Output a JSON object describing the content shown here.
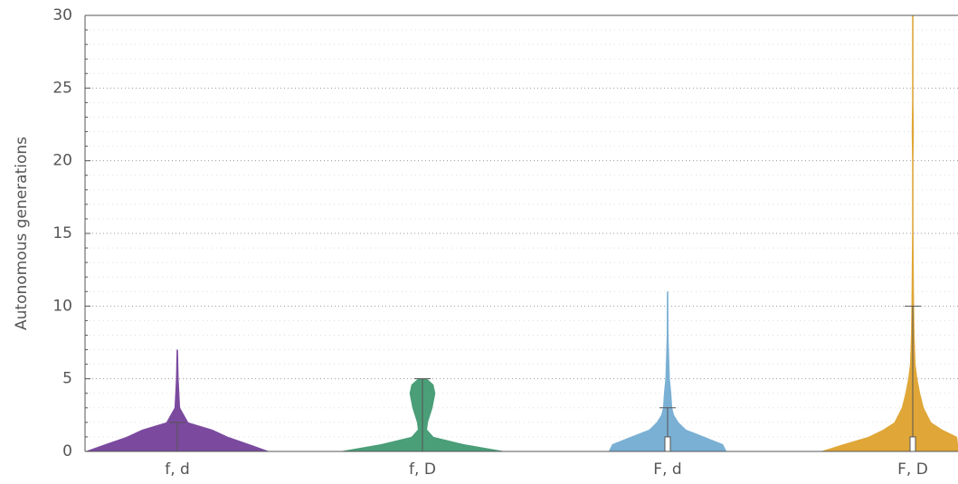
{
  "chart_data": {
    "type": "violin",
    "title": "",
    "xlabel": "",
    "ylabel": "Autonomous generations",
    "ylim": [
      0,
      30
    ],
    "yticks": [
      0,
      5,
      10,
      15,
      20,
      25,
      30
    ],
    "grid": true,
    "categories": [
      "f, d",
      "f, D",
      "F, d",
      "F, D"
    ],
    "series": [
      {
        "category": "f, d",
        "color": "#7b4a9e",
        "profile": [
          [
            0,
            1.0
          ],
          [
            0.5,
            0.78
          ],
          [
            1,
            0.55
          ],
          [
            1.5,
            0.38
          ],
          [
            2,
            0.12
          ],
          [
            3,
            0.03
          ],
          [
            5,
            0.015
          ],
          [
            7,
            0.008
          ]
        ],
        "box": {
          "q1": 0,
          "median": 0,
          "q3": 0,
          "whisker_low": 0,
          "whisker_high": 2
        }
      },
      {
        "category": "f, D",
        "color": "#4a9e78",
        "profile": [
          [
            0,
            0.9
          ],
          [
            0.5,
            0.45
          ],
          [
            1,
            0.12
          ],
          [
            1.5,
            0.05
          ],
          [
            2,
            0.06
          ],
          [
            3,
            0.11
          ],
          [
            4,
            0.14
          ],
          [
            4.6,
            0.12
          ],
          [
            5,
            0.05
          ]
        ],
        "box": {
          "q1": 0,
          "median": 0,
          "q3": 0,
          "whisker_low": 0,
          "whisker_high": 5
        }
      },
      {
        "category": "F, d",
        "color": "#7ab0d4",
        "profile": [
          [
            0,
            0.64
          ],
          [
            0.5,
            0.6
          ],
          [
            1,
            0.4
          ],
          [
            1.5,
            0.2
          ],
          [
            2,
            0.12
          ],
          [
            2.5,
            0.07
          ],
          [
            3,
            0.05
          ],
          [
            4,
            0.04
          ],
          [
            5,
            0.025
          ],
          [
            6,
            0.02
          ],
          [
            8,
            0.01
          ],
          [
            11,
            0.008
          ]
        ],
        "box": {
          "q1": 0,
          "median": 0,
          "q3": 1,
          "whisker_low": 0,
          "whisker_high": 3
        }
      },
      {
        "category": "F, D",
        "color": "#e0a637",
        "profile": [
          [
            0,
            1.0
          ],
          [
            0.5,
            0.75
          ],
          [
            1,
            0.48
          ],
          [
            1.5,
            0.32
          ],
          [
            2,
            0.2
          ],
          [
            3,
            0.12
          ],
          [
            4,
            0.08
          ],
          [
            5,
            0.05
          ],
          [
            6,
            0.03
          ],
          [
            8,
            0.02
          ],
          [
            10,
            0.015
          ],
          [
            12,
            0.012
          ],
          [
            15,
            0.008
          ],
          [
            20,
            0.008
          ],
          [
            22,
            0.012
          ],
          [
            24,
            0.006
          ],
          [
            27,
            0.004
          ],
          [
            30,
            0.006
          ]
        ],
        "box": {
          "q1": 0,
          "median": 0,
          "q3": 1,
          "whisker_low": 0,
          "whisker_high": 10
        }
      }
    ]
  }
}
